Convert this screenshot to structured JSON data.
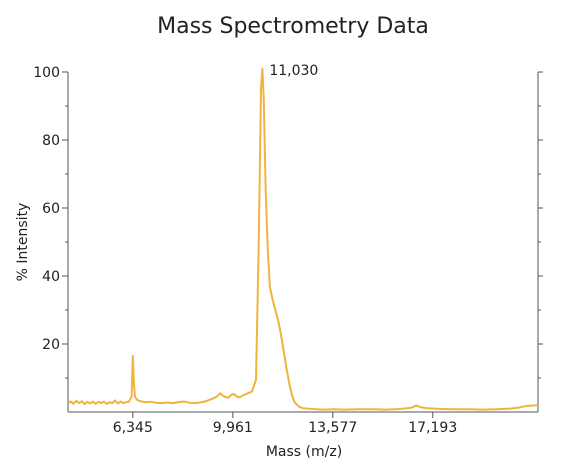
{
  "chart_data": {
    "type": "line",
    "title": "Mass Spectrometry Data",
    "xlabel": "Mass (m/z)",
    "ylabel": "% Intensity",
    "xlim": [
      4000,
      21000
    ],
    "ylim": [
      0,
      100
    ],
    "x_ticks": [
      6345,
      9961,
      13577,
      17193
    ],
    "x_tick_labels": [
      "6,345",
      "9,961",
      "13,577",
      "17,193"
    ],
    "y_ticks": [
      20,
      40,
      60,
      80,
      100
    ],
    "y_tick_labels": [
      "20",
      "40",
      "60",
      "80",
      "100"
    ],
    "annotations": [
      {
        "text": "11,030",
        "x": 11030,
        "y": 100
      }
    ],
    "series": [
      {
        "color": "#f0b43c",
        "points": [
          [
            4000,
            2.5
          ],
          [
            4100,
            3.1
          ],
          [
            4200,
            2.4
          ],
          [
            4300,
            3.3
          ],
          [
            4400,
            2.6
          ],
          [
            4500,
            3.2
          ],
          [
            4600,
            2.3
          ],
          [
            4700,
            3.0
          ],
          [
            4800,
            2.5
          ],
          [
            4900,
            3.1
          ],
          [
            5000,
            2.4
          ],
          [
            5100,
            3.0
          ],
          [
            5200,
            2.6
          ],
          [
            5300,
            3.1
          ],
          [
            5400,
            2.4
          ],
          [
            5500,
            2.9
          ],
          [
            5600,
            2.6
          ],
          [
            5700,
            3.4
          ],
          [
            5800,
            2.5
          ],
          [
            5900,
            3.1
          ],
          [
            6000,
            2.6
          ],
          [
            6100,
            2.9
          ],
          [
            6200,
            3.0
          ],
          [
            6300,
            4.5
          ],
          [
            6345,
            16.5
          ],
          [
            6380,
            9.0
          ],
          [
            6420,
            4.5
          ],
          [
            6500,
            3.6
          ],
          [
            6600,
            3.2
          ],
          [
            6800,
            2.9
          ],
          [
            7000,
            3.0
          ],
          [
            7200,
            2.7
          ],
          [
            7400,
            2.6
          ],
          [
            7600,
            2.8
          ],
          [
            7800,
            2.6
          ],
          [
            8000,
            2.9
          ],
          [
            8200,
            3.1
          ],
          [
            8400,
            2.7
          ],
          [
            8600,
            2.6
          ],
          [
            8800,
            2.8
          ],
          [
            9000,
            3.2
          ],
          [
            9200,
            3.8
          ],
          [
            9400,
            4.6
          ],
          [
            9500,
            5.5
          ],
          [
            9600,
            4.8
          ],
          [
            9700,
            4.4
          ],
          [
            9800,
            4.2
          ],
          [
            9900,
            5.0
          ],
          [
            10000,
            5.3
          ],
          [
            10100,
            4.6
          ],
          [
            10200,
            4.3
          ],
          [
            10300,
            4.8
          ],
          [
            10500,
            5.5
          ],
          [
            10650,
            6.0
          ],
          [
            10800,
            9.5
          ],
          [
            10900,
            50.0
          ],
          [
            10980,
            95.0
          ],
          [
            11030,
            101.0
          ],
          [
            11080,
            92.0
          ],
          [
            11150,
            65.0
          ],
          [
            11230,
            47.0
          ],
          [
            11300,
            37.0
          ],
          [
            11400,
            33.0
          ],
          [
            11500,
            30.0
          ],
          [
            11600,
            27.0
          ],
          [
            11700,
            23.0
          ],
          [
            11800,
            18.0
          ],
          [
            11900,
            13.0
          ],
          [
            12000,
            8.5
          ],
          [
            12100,
            5.0
          ],
          [
            12200,
            2.8
          ],
          [
            12350,
            1.6
          ],
          [
            12500,
            1.1
          ],
          [
            12800,
            0.9
          ],
          [
            13200,
            0.7
          ],
          [
            13600,
            0.8
          ],
          [
            14000,
            0.7
          ],
          [
            14500,
            0.8
          ],
          [
            15000,
            0.8
          ],
          [
            15500,
            0.7
          ],
          [
            16000,
            0.9
          ],
          [
            16400,
            1.2
          ],
          [
            16600,
            1.9
          ],
          [
            16750,
            1.4
          ],
          [
            17000,
            1.1
          ],
          [
            17500,
            0.9
          ],
          [
            18000,
            0.8
          ],
          [
            18500,
            0.8
          ],
          [
            19000,
            0.7
          ],
          [
            19500,
            0.8
          ],
          [
            20000,
            1.0
          ],
          [
            20300,
            1.3
          ],
          [
            20600,
            1.8
          ],
          [
            21000,
            2.0
          ]
        ]
      }
    ]
  }
}
